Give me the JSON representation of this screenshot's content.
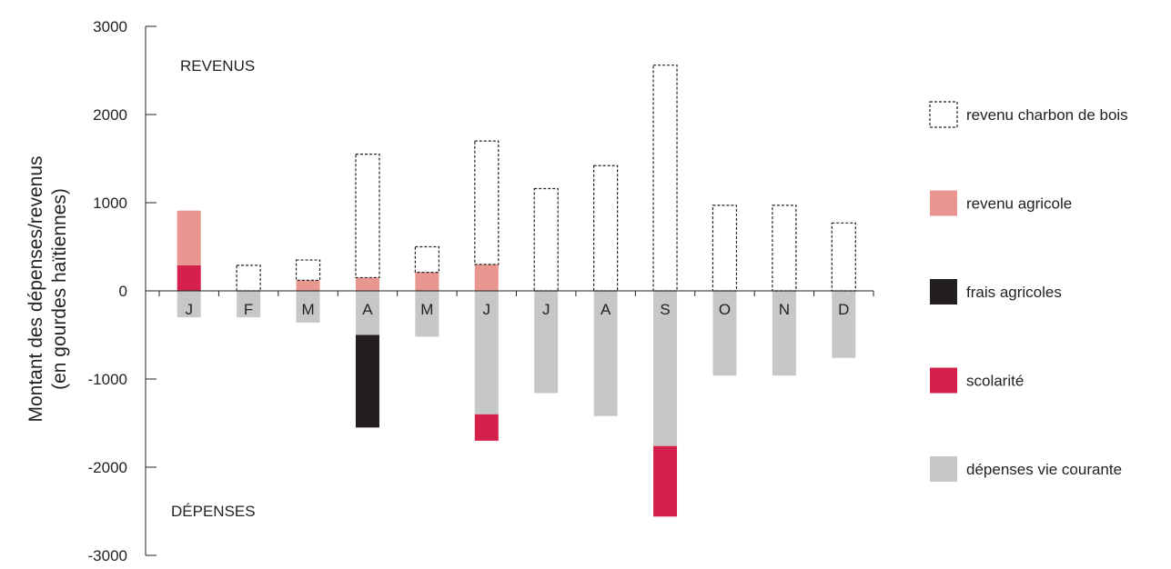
{
  "chart_data": {
    "type": "bar",
    "stacked": true,
    "categories": [
      "J",
      "F",
      "M",
      "A",
      "M",
      "J",
      "J",
      "A",
      "S",
      "O",
      "N",
      "D"
    ],
    "ylabel": [
      "Montant des dépenses/revenus",
      "(en gourdes haïtiennes)"
    ],
    "ylim": [
      -3000,
      3000
    ],
    "yticks": [
      3000,
      2000,
      1000,
      0,
      -1000,
      -2000,
      -3000
    ],
    "grid": false,
    "legend_position": "right",
    "annotations": {
      "top": "REVENUS",
      "bottom": "DÉPENSES"
    },
    "series": [
      {
        "key": "charbon",
        "name": "revenu charbon de bois",
        "style": "dashed-outline",
        "color": "#222222",
        "values": [
          0,
          290,
          230,
          1400,
          290,
          1400,
          1160,
          1420,
          2560,
          970,
          970,
          770
        ]
      },
      {
        "key": "agricole",
        "name": "revenu agricole",
        "style": "fill",
        "color": "#e8968f",
        "values": [
          620,
          0,
          120,
          150,
          210,
          300,
          0,
          0,
          0,
          0,
          0,
          0
        ]
      },
      {
        "key": "frais",
        "name": "frais agricoles",
        "style": "fill",
        "color": "#231f20",
        "values": [
          0,
          0,
          0,
          -1050,
          0,
          0,
          0,
          0,
          0,
          0,
          0,
          0
        ]
      },
      {
        "key": "scolarite",
        "name": "scolarité",
        "style": "fill",
        "color": "#d4204a",
        "values": [
          290,
          0,
          0,
          0,
          0,
          -300,
          0,
          0,
          -800,
          0,
          0,
          0
        ]
      },
      {
        "key": "vie",
        "name": "dépenses vie courante",
        "style": "fill",
        "color": "#c6c7c9",
        "values": [
          -300,
          -300,
          -360,
          -500,
          -520,
          -1400,
          -1160,
          -1420,
          -1760,
          -960,
          -960,
          -760
        ]
      }
    ],
    "stack_order_positive": [
      "scolarite",
      "agricole",
      "charbon"
    ],
    "stack_order_negative": [
      "vie",
      "frais",
      "scolarite"
    ],
    "legend_order": [
      "charbon",
      "agricole",
      "frais",
      "scolarite",
      "vie"
    ]
  }
}
